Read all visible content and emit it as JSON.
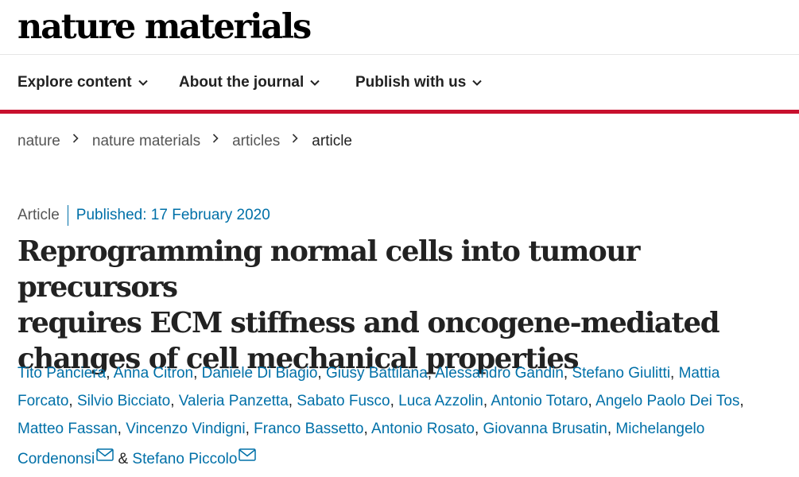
{
  "brand": {
    "logo_text": "nature materials"
  },
  "nav": {
    "items": [
      {
        "label": "Explore content"
      },
      {
        "label": "About the journal"
      },
      {
        "label": "Publish with us"
      }
    ]
  },
  "breadcrumb": [
    "nature",
    "nature materials",
    "articles",
    "article"
  ],
  "article": {
    "type": "Article",
    "published": "Published: 17 February 2020",
    "title_lines": [
      "Reprogramming normal cells into tumour precursors",
      "requires ECM stiffness and oncogene-mediated",
      "changes of cell mechanical properties"
    ],
    "authors": [
      "Tito Panciera",
      "Anna Citron",
      "Daniele Di Biagio",
      "Giusy Battilana",
      "Alessandro Gandin",
      "Stefano Giulitti",
      "Mattia",
      "Forcato",
      "Silvio Bicciato",
      "Valeria Panzetta",
      "Sabato Fusco",
      "Luca Azzolin",
      "Antonio Totaro",
      "Angelo Paolo Dei Tos",
      "Matteo Fassan",
      "Vincenzo Vindigni",
      "Franco Bassetto",
      "Antonio Rosato",
      "Giovanna Brusatin",
      "Michelangelo",
      "Cordenonsi",
      "Stefano Piccolo"
    ],
    "separators": {
      "comma": ",",
      "ampersand": "&"
    }
  },
  "colors": {
    "accent_red": "#c8102e",
    "link_blue": "#0070a8"
  }
}
